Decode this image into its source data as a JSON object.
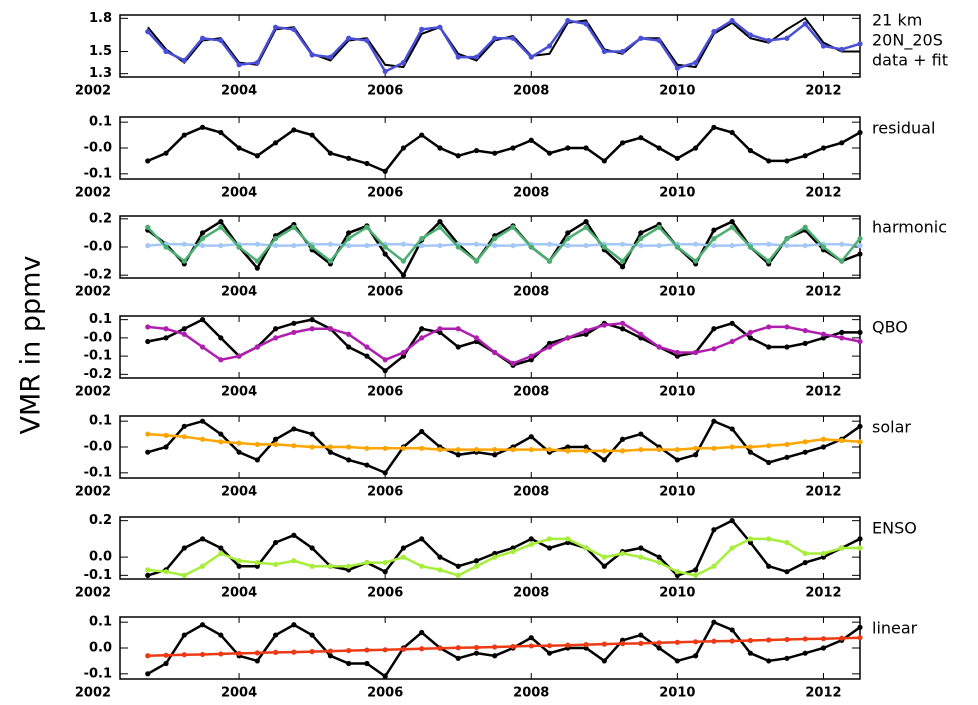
{
  "ylabel": "VMR in ppmv",
  "chart_data": [
    {
      "type": "line",
      "annotations": [
        "21 km",
        "20N_20S",
        "data + fit"
      ],
      "x": [
        2002.75,
        2003,
        2003.25,
        2003.5,
        2003.75,
        2004,
        2004.25,
        2004.5,
        2004.75,
        2005,
        2005.25,
        2005.5,
        2005.75,
        2006,
        2006.25,
        2006.5,
        2006.75,
        2007,
        2007.25,
        2007.5,
        2007.75,
        2008,
        2008.25,
        2008.5,
        2008.75,
        2009,
        2009.25,
        2009.5,
        2009.75,
        2010,
        2010.25,
        2010.5,
        2010.75,
        2011,
        2011.25,
        2011.5,
        2011.75,
        2012,
        2012.25,
        2012.5
      ],
      "xlim": [
        2002.37,
        2012.5
      ],
      "xticks": [
        2002,
        2004,
        2006,
        2008,
        2010,
        2012
      ],
      "ylim": [
        1.27,
        1.83
      ],
      "yticks": [
        1.3,
        1.5,
        1.8
      ],
      "series": [
        {
          "color": "#000000",
          "markers": false,
          "values": [
            1.72,
            1.52,
            1.4,
            1.6,
            1.62,
            1.4,
            1.38,
            1.7,
            1.72,
            1.48,
            1.42,
            1.6,
            1.62,
            1.38,
            1.36,
            1.66,
            1.72,
            1.48,
            1.42,
            1.6,
            1.64,
            1.46,
            1.48,
            1.76,
            1.78,
            1.52,
            1.48,
            1.62,
            1.62,
            1.38,
            1.36,
            1.66,
            1.76,
            1.62,
            1.58,
            1.7,
            1.8,
            1.58,
            1.5,
            1.5
          ]
        },
        {
          "color": "#4a4fd8",
          "markers": true,
          "values": [
            1.68,
            1.5,
            1.42,
            1.62,
            1.6,
            1.38,
            1.4,
            1.72,
            1.7,
            1.47,
            1.45,
            1.62,
            1.6,
            1.32,
            1.4,
            1.7,
            1.72,
            1.45,
            1.45,
            1.62,
            1.62,
            1.45,
            1.55,
            1.78,
            1.75,
            1.5,
            1.5,
            1.62,
            1.6,
            1.35,
            1.4,
            1.68,
            1.78,
            1.65,
            1.6,
            1.62,
            1.75,
            1.55,
            1.52,
            1.57
          ]
        }
      ]
    },
    {
      "type": "line",
      "annotations": [
        "residual"
      ],
      "x": [
        2002.75,
        2003,
        2003.25,
        2003.5,
        2003.75,
        2004,
        2004.25,
        2004.5,
        2004.75,
        2005,
        2005.25,
        2005.5,
        2005.75,
        2006,
        2006.25,
        2006.5,
        2006.75,
        2007,
        2007.25,
        2007.5,
        2007.75,
        2008,
        2008.25,
        2008.5,
        2008.75,
        2009,
        2009.25,
        2009.5,
        2009.75,
        2010,
        2010.25,
        2010.5,
        2010.75,
        2011,
        2011.25,
        2011.5,
        2011.75,
        2012,
        2012.25,
        2012.5
      ],
      "xlim": [
        2002.37,
        2012.5
      ],
      "xticks": [
        2002,
        2004,
        2006,
        2008,
        2010,
        2012
      ],
      "ylim": [
        -0.12,
        0.12
      ],
      "yticks": [
        0.1,
        {
          "value": 0,
          "label": "-0.0"
        },
        -0.1
      ],
      "series": [
        {
          "color": "#000000",
          "markers": true,
          "values": [
            -0.05,
            -0.02,
            0.05,
            0.08,
            0.06,
            0.0,
            -0.03,
            0.02,
            0.07,
            0.05,
            -0.02,
            -0.04,
            -0.06,
            -0.09,
            0.0,
            0.05,
            0.0,
            -0.03,
            -0.01,
            -0.02,
            0.0,
            0.03,
            -0.02,
            0.0,
            0.0,
            -0.05,
            0.02,
            0.04,
            0.0,
            -0.04,
            0.0,
            0.08,
            0.06,
            -0.01,
            -0.05,
            -0.05,
            -0.03,
            0.0,
            0.02,
            0.06
          ]
        }
      ]
    },
    {
      "type": "line",
      "annotations": [
        "harmonic"
      ],
      "x": [
        2002.75,
        2003,
        2003.25,
        2003.5,
        2003.75,
        2004,
        2004.25,
        2004.5,
        2004.75,
        2005,
        2005.25,
        2005.5,
        2005.75,
        2006,
        2006.25,
        2006.5,
        2006.75,
        2007,
        2007.25,
        2007.5,
        2007.75,
        2008,
        2008.25,
        2008.5,
        2008.75,
        2009,
        2009.25,
        2009.5,
        2009.75,
        2010,
        2010.25,
        2010.5,
        2010.75,
        2011,
        2011.25,
        2011.5,
        2011.75,
        2012,
        2012.25,
        2012.5
      ],
      "xlim": [
        2002.37,
        2012.5
      ],
      "xticks": [
        2002,
        2004,
        2006,
        2008,
        2010,
        2012
      ],
      "ylim": [
        -0.22,
        0.22
      ],
      "yticks": [
        0.2,
        {
          "value": 0,
          "label": "-0.0"
        },
        -0.2
      ],
      "series": [
        {
          "color": "#000000",
          "markers": true,
          "values": [
            0.12,
            0.02,
            -0.12,
            0.1,
            0.18,
            0.0,
            -0.15,
            0.08,
            0.16,
            -0.02,
            -0.12,
            0.1,
            0.15,
            -0.05,
            -0.2,
            0.05,
            0.18,
            0.02,
            -0.1,
            0.08,
            0.15,
            0.0,
            -0.1,
            0.1,
            0.18,
            -0.02,
            -0.14,
            0.1,
            0.16,
            0.0,
            -0.12,
            0.12,
            0.18,
            0.0,
            -0.12,
            0.06,
            0.12,
            -0.02,
            -0.1,
            -0.05
          ]
        },
        {
          "color": "#a3c8f5",
          "markers": true,
          "values": [
            0.01,
            0.02,
            0.02,
            0.01,
            0.01,
            0.02,
            0.02,
            0.01,
            0.01,
            0.02,
            0.02,
            0.01,
            0.01,
            0.02,
            0.02,
            0.01,
            0.01,
            0.02,
            0.02,
            0.01,
            0.01,
            0.02,
            0.02,
            0.01,
            0.01,
            0.02,
            0.02,
            0.01,
            0.01,
            0.02,
            0.02,
            0.01,
            0.01,
            0.02,
            0.02,
            0.01,
            0.01,
            0.02,
            0.02,
            0.01
          ]
        },
        {
          "color": "#4caf72",
          "markers": true,
          "values": [
            0.14,
            0.0,
            -0.1,
            0.06,
            0.14,
            0.0,
            -0.1,
            0.06,
            0.14,
            0.0,
            -0.1,
            0.06,
            0.14,
            0.0,
            -0.1,
            0.06,
            0.14,
            0.0,
            -0.1,
            0.06,
            0.14,
            0.0,
            -0.1,
            0.06,
            0.14,
            0.0,
            -0.1,
            0.06,
            0.14,
            0.0,
            -0.1,
            0.06,
            0.14,
            0.0,
            -0.1,
            0.06,
            0.14,
            0.0,
            -0.1,
            0.06
          ]
        }
      ]
    },
    {
      "type": "line",
      "annotations": [
        "QBO"
      ],
      "x": [
        2002.75,
        2003,
        2003.25,
        2003.5,
        2003.75,
        2004,
        2004.25,
        2004.5,
        2004.75,
        2005,
        2005.25,
        2005.5,
        2005.75,
        2006,
        2006.25,
        2006.5,
        2006.75,
        2007,
        2007.25,
        2007.5,
        2007.75,
        2008,
        2008.25,
        2008.5,
        2008.75,
        2009,
        2009.25,
        2009.5,
        2009.75,
        2010,
        2010.25,
        2010.5,
        2010.75,
        2011,
        2011.25,
        2011.5,
        2011.75,
        2012,
        2012.25,
        2012.5
      ],
      "xlim": [
        2002.37,
        2012.5
      ],
      "xticks": [
        2002,
        2004,
        2006,
        2008,
        2010,
        2012
      ],
      "ylim": [
        -0.22,
        0.12
      ],
      "yticks": [
        0.1,
        {
          "value": 0,
          "label": "-0.0"
        },
        -0.1,
        -0.2
      ],
      "series": [
        {
          "color": "#000000",
          "markers": true,
          "values": [
            -0.02,
            0.0,
            0.05,
            0.1,
            0.0,
            -0.1,
            -0.05,
            0.05,
            0.08,
            0.1,
            0.05,
            -0.05,
            -0.1,
            -0.18,
            -0.1,
            0.05,
            0.03,
            -0.05,
            -0.02,
            -0.08,
            -0.15,
            -0.12,
            -0.03,
            0.0,
            0.02,
            0.08,
            0.05,
            0.0,
            -0.05,
            -0.1,
            -0.08,
            0.05,
            0.08,
            0.0,
            -0.05,
            -0.05,
            -0.03,
            0.0,
            0.03,
            0.03
          ]
        },
        {
          "color": "#b01eb0",
          "markers": true,
          "values": [
            0.06,
            0.05,
            0.02,
            -0.05,
            -0.12,
            -0.1,
            -0.05,
            0.0,
            0.03,
            0.05,
            0.05,
            0.02,
            -0.05,
            -0.12,
            -0.08,
            0.0,
            0.05,
            0.05,
            0.0,
            -0.08,
            -0.14,
            -0.1,
            -0.05,
            0.0,
            0.04,
            0.07,
            0.08,
            0.02,
            -0.05,
            -0.08,
            -0.08,
            -0.06,
            -0.02,
            0.03,
            0.06,
            0.06,
            0.04,
            0.02,
            0.0,
            -0.02
          ]
        }
      ]
    },
    {
      "type": "line",
      "annotations": [
        "solar"
      ],
      "x": [
        2002.75,
        2003,
        2003.25,
        2003.5,
        2003.75,
        2004,
        2004.25,
        2004.5,
        2004.75,
        2005,
        2005.25,
        2005.5,
        2005.75,
        2006,
        2006.25,
        2006.5,
        2006.75,
        2007,
        2007.25,
        2007.5,
        2007.75,
        2008,
        2008.25,
        2008.5,
        2008.75,
        2009,
        2009.25,
        2009.5,
        2009.75,
        2010,
        2010.25,
        2010.5,
        2010.75,
        2011,
        2011.25,
        2011.5,
        2011.75,
        2012,
        2012.25,
        2012.5
      ],
      "xlim": [
        2002.37,
        2012.5
      ],
      "xticks": [
        2002,
        2004,
        2006,
        2008,
        2010,
        2012
      ],
      "ylim": [
        -0.12,
        0.12
      ],
      "yticks": [
        0.1,
        {
          "value": 0,
          "label": "-0.0"
        },
        -0.1
      ],
      "series": [
        {
          "color": "#000000",
          "markers": true,
          "values": [
            -0.02,
            0.0,
            0.08,
            0.1,
            0.05,
            -0.02,
            -0.05,
            0.03,
            0.07,
            0.05,
            -0.02,
            -0.05,
            -0.07,
            -0.1,
            0.0,
            0.06,
            0.0,
            -0.03,
            -0.02,
            -0.03,
            0.0,
            0.04,
            -0.02,
            0.0,
            0.0,
            -0.05,
            0.03,
            0.05,
            0.0,
            -0.05,
            -0.03,
            0.1,
            0.07,
            -0.02,
            -0.06,
            -0.04,
            -0.02,
            0.0,
            0.03,
            0.08
          ]
        },
        {
          "color": "#ffa500",
          "markers": true,
          "values": [
            0.05,
            0.045,
            0.04,
            0.03,
            0.02,
            0.015,
            0.01,
            0.01,
            0.005,
            0.0,
            0.0,
            0.0,
            -0.005,
            -0.005,
            -0.005,
            -0.005,
            -0.01,
            -0.01,
            -0.01,
            -0.01,
            -0.01,
            -0.01,
            -0.01,
            -0.015,
            -0.015,
            -0.015,
            -0.015,
            -0.01,
            -0.01,
            -0.01,
            -0.005,
            -0.005,
            0.0,
            0.0,
            0.005,
            0.01,
            0.02,
            0.03,
            0.025,
            0.02
          ]
        }
      ]
    },
    {
      "type": "line",
      "annotations": [
        "ENSO"
      ],
      "x": [
        2002.75,
        2003,
        2003.25,
        2003.5,
        2003.75,
        2004,
        2004.25,
        2004.5,
        2004.75,
        2005,
        2005.25,
        2005.5,
        2005.75,
        2006,
        2006.25,
        2006.5,
        2006.75,
        2007,
        2007.25,
        2007.5,
        2007.75,
        2008,
        2008.25,
        2008.5,
        2008.75,
        2009,
        2009.25,
        2009.5,
        2009.75,
        2010,
        2010.25,
        2010.5,
        2010.75,
        2011,
        2011.25,
        2011.5,
        2011.75,
        2012,
        2012.25,
        2012.5
      ],
      "xlim": [
        2002.37,
        2012.5
      ],
      "xticks": [
        2002,
        2004,
        2006,
        2008,
        2010,
        2012
      ],
      "ylim": [
        -0.12,
        0.22
      ],
      "yticks": [
        0.2,
        {
          "value": 0,
          "label": "0.0"
        },
        -0.1
      ],
      "series": [
        {
          "color": "#000000",
          "markers": true,
          "values": [
            -0.1,
            -0.07,
            0.05,
            0.1,
            0.05,
            -0.05,
            -0.05,
            0.08,
            0.12,
            0.05,
            -0.05,
            -0.07,
            -0.03,
            -0.08,
            0.05,
            0.1,
            0.0,
            -0.05,
            -0.02,
            0.02,
            0.05,
            0.1,
            0.05,
            0.08,
            0.05,
            -0.05,
            0.03,
            0.05,
            0.0,
            -0.1,
            -0.07,
            0.15,
            0.2,
            0.08,
            -0.05,
            -0.08,
            -0.03,
            0.0,
            0.05,
            0.1
          ]
        },
        {
          "color": "#a6ee3a",
          "markers": true,
          "values": [
            -0.07,
            -0.08,
            -0.1,
            -0.05,
            0.02,
            -0.02,
            -0.03,
            -0.04,
            -0.02,
            -0.05,
            -0.05,
            -0.05,
            -0.03,
            -0.03,
            0.0,
            -0.05,
            -0.07,
            -0.1,
            -0.05,
            0.0,
            0.03,
            0.07,
            0.1,
            0.1,
            0.05,
            0.0,
            0.02,
            0.0,
            -0.03,
            -0.08,
            -0.1,
            -0.05,
            0.05,
            0.1,
            0.1,
            0.08,
            0.02,
            0.02,
            0.05,
            0.05
          ]
        }
      ]
    },
    {
      "type": "line",
      "annotations": [
        "linear"
      ],
      "x": [
        2002.75,
        2003,
        2003.25,
        2003.5,
        2003.75,
        2004,
        2004.25,
        2004.5,
        2004.75,
        2005,
        2005.25,
        2005.5,
        2005.75,
        2006,
        2006.25,
        2006.5,
        2006.75,
        2007,
        2007.25,
        2007.5,
        2007.75,
        2008,
        2008.25,
        2008.5,
        2008.75,
        2009,
        2009.25,
        2009.5,
        2009.75,
        2010,
        2010.25,
        2010.5,
        2010.75,
        2011,
        2011.25,
        2011.5,
        2011.75,
        2012,
        2012.25,
        2012.5
      ],
      "xlim": [
        2002.37,
        2012.5
      ],
      "xticks": [
        2002,
        2004,
        2006,
        2008,
        2010,
        2012
      ],
      "ylim": [
        -0.12,
        0.12
      ],
      "yticks": [
        0.1,
        {
          "value": 0,
          "label": "0.0"
        },
        -0.1
      ],
      "series": [
        {
          "color": "#000000",
          "markers": true,
          "values": [
            -0.1,
            -0.06,
            0.05,
            0.09,
            0.05,
            -0.03,
            -0.05,
            0.05,
            0.09,
            0.05,
            -0.03,
            -0.06,
            -0.06,
            -0.11,
            0.0,
            0.06,
            0.0,
            -0.04,
            -0.02,
            -0.03,
            0.0,
            0.04,
            -0.02,
            0.0,
            0.0,
            -0.05,
            0.03,
            0.05,
            0.0,
            -0.05,
            -0.03,
            0.1,
            0.07,
            -0.02,
            -0.05,
            -0.04,
            -0.02,
            0.0,
            0.03,
            0.08
          ]
        },
        {
          "color": "#ee3a14",
          "markers": true,
          "values": [
            -0.03,
            -0.028,
            -0.026,
            -0.025,
            -0.023,
            -0.021,
            -0.019,
            -0.017,
            -0.016,
            -0.014,
            -0.012,
            -0.01,
            -0.008,
            -0.007,
            -0.005,
            -0.003,
            -0.001,
            0.001,
            0.002,
            0.004,
            0.006,
            0.008,
            0.009,
            0.011,
            0.013,
            0.015,
            0.017,
            0.018,
            0.02,
            0.022,
            0.024,
            0.026,
            0.027,
            0.029,
            0.031,
            0.033,
            0.035,
            0.036,
            0.038,
            0.04
          ]
        }
      ]
    }
  ]
}
